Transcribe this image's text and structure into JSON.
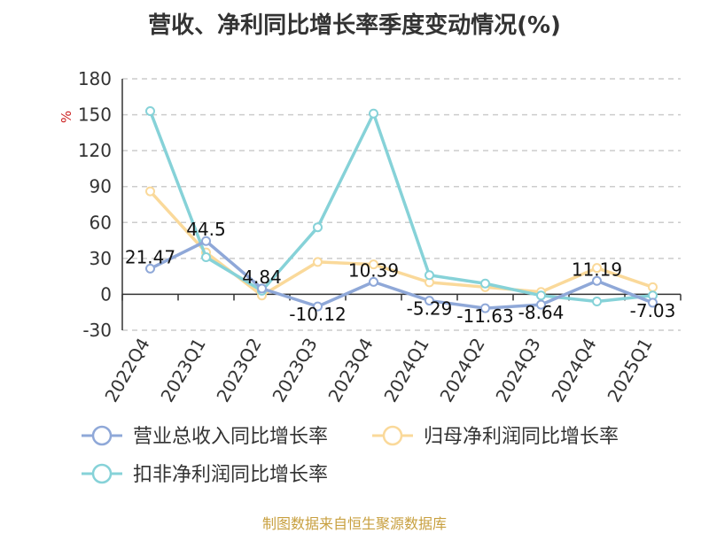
{
  "title": "营收、净利同比增长率季度变动情况(%)",
  "footer": "制图数据来自恒生聚源数据库",
  "colors": {
    "revenue": "#8fa8d8",
    "net_profit": "#fad99a",
    "deducted": "#86d2d8",
    "grid": "#cccccc",
    "axis": "#333333"
  },
  "chart_data": {
    "type": "line",
    "title": "营收、净利同比增长率季度变动情况(%)",
    "ylabel": "%",
    "xlabel": "",
    "ylim": [
      -30,
      180
    ],
    "yticks": [
      -30,
      0,
      30,
      60,
      90,
      120,
      150,
      180
    ],
    "grid": true,
    "legend_position": "bottom",
    "categories": [
      "2022Q4",
      "2023Q1",
      "2023Q2",
      "2023Q3",
      "2023Q4",
      "2024Q1",
      "2024Q2",
      "2024Q3",
      "2024Q4",
      "2025Q1"
    ],
    "series": [
      {
        "name": "营业总收入同比增长率",
        "color_key": "revenue",
        "values": [
          21.47,
          44.5,
          4.84,
          -10.12,
          10.39,
          -5.29,
          -11.63,
          -8.64,
          11.19,
          -7.03
        ],
        "labels": [
          "21.47",
          "44.5",
          "4.84",
          "-10.12",
          "10.39",
          "-5.29",
          "-11.63",
          "-8.64",
          "11.19",
          "-7.03"
        ]
      },
      {
        "name": "归母净利润同比增长率",
        "color_key": "net_profit",
        "values": [
          86,
          35,
          -1,
          27,
          25,
          10,
          6,
          2,
          22,
          6
        ]
      },
      {
        "name": "扣非净利润同比增长率",
        "color_key": "deducted",
        "values": [
          153,
          31,
          3,
          56,
          151,
          16,
          9,
          -1,
          -6,
          -1
        ]
      }
    ]
  }
}
